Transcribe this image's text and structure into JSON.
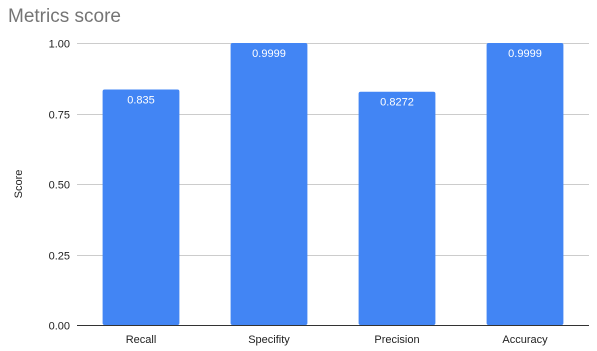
{
  "chart_data": {
    "type": "bar",
    "title": "Metrics score",
    "xlabel": "",
    "ylabel": "Score",
    "categories": [
      "Recall",
      "Specifity",
      "Precision",
      "Accuracy"
    ],
    "values": [
      0.835,
      0.9999,
      0.8272,
      0.9999
    ],
    "data_labels": [
      "0.835",
      "0.9999",
      "0.8272",
      "0.9999"
    ],
    "ylim": [
      0,
      1
    ],
    "yticks": [
      0,
      0.25,
      0.5,
      0.75,
      1
    ],
    "ytick_labels": [
      "0.00",
      "0.25",
      "0.50",
      "0.75",
      "1.00"
    ],
    "grid": true,
    "legend": "none",
    "bar_color": "#4285f4"
  }
}
